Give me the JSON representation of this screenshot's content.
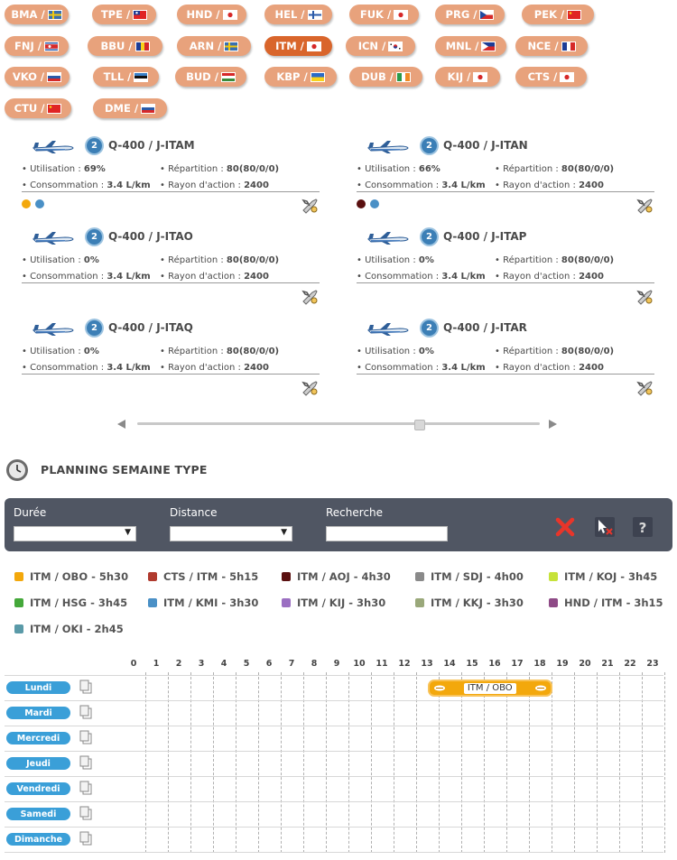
{
  "airports": [
    {
      "code": "BMA / ",
      "flag": "se"
    },
    {
      "code": "TPE / ",
      "flag": "tw"
    },
    {
      "code": "HND / ",
      "flag": "jp"
    },
    {
      "code": "HEL / ",
      "flag": "fi"
    },
    {
      "code": "FUK / ",
      "flag": "jp"
    },
    {
      "code": "PRG / ",
      "flag": "cz"
    },
    {
      "code": "PEK / ",
      "flag": "cn"
    },
    {
      "code": "FNJ / ",
      "flag": "kp"
    },
    {
      "code": "BBU / ",
      "flag": "ro"
    },
    {
      "code": "ARN / ",
      "flag": "se"
    },
    {
      "code": "ITM / ",
      "flag": "jp",
      "active": true
    },
    {
      "code": "ICN / ",
      "flag": "kr"
    },
    {
      "code": "MNL / ",
      "flag": "ph"
    },
    {
      "code": "NCE / ",
      "flag": "fr"
    },
    {
      "code": "VKO / ",
      "flag": "ru"
    },
    {
      "code": "TLL / ",
      "flag": "ee"
    },
    {
      "code": "BUD / ",
      "flag": "hu"
    },
    {
      "code": "KBP / ",
      "flag": "ua"
    },
    {
      "code": "DUB / ",
      "flag": "ie"
    },
    {
      "code": "KIJ / ",
      "flag": "jp"
    },
    {
      "code": "CTS / ",
      "flag": "jp"
    },
    {
      "code": "CTU / ",
      "flag": "cn"
    },
    {
      "code": "DME / ",
      "flag": "ru"
    }
  ],
  "aircraft": [
    {
      "level": "2",
      "title": "Q-400 / J-ITAM",
      "util_label": "Utilisation : ",
      "util": "69%",
      "rep_label": "Répartition : ",
      "rep": "80(80/0/0)",
      "conso_label": "Consommation : ",
      "conso": "3.4 L/km",
      "range_label": "Rayon d'action : ",
      "range": "2400",
      "routes": [
        "#f3a80c",
        "#4a90c6"
      ]
    },
    {
      "level": "2",
      "title": "Q-400 / J-ITAN",
      "util_label": "Utilisation : ",
      "util": "66%",
      "rep_label": "Répartition : ",
      "rep": "80(80/0/0)",
      "conso_label": "Consommation : ",
      "conso": "3.4 L/km",
      "range_label": "Rayon d'action : ",
      "range": "2400",
      "routes": [
        "#5a1010",
        "#4a90c6"
      ]
    },
    {
      "level": "2",
      "title": "Q-400 / J-ITAO",
      "util_label": "Utilisation : ",
      "util": "0%",
      "rep_label": "Répartition : ",
      "rep": "80(80/0/0)",
      "conso_label": "Consommation : ",
      "conso": "3.4 L/km",
      "range_label": "Rayon d'action : ",
      "range": "2400",
      "routes": []
    },
    {
      "level": "2",
      "title": "Q-400 / J-ITAP",
      "util_label": "Utilisation : ",
      "util": "0%",
      "rep_label": "Répartition : ",
      "rep": "80(80/0/0)",
      "conso_label": "Consommation : ",
      "conso": "3.4 L/km",
      "range_label": "Rayon d'action : ",
      "range": "2400",
      "routes": []
    },
    {
      "level": "2",
      "title": "Q-400 / J-ITAQ",
      "util_label": "Utilisation : ",
      "util": "0%",
      "rep_label": "Répartition : ",
      "rep": "80(80/0/0)",
      "conso_label": "Consommation : ",
      "conso": "3.4 L/km",
      "range_label": "Rayon d'action : ",
      "range": "2400",
      "routes": []
    },
    {
      "level": "2",
      "title": "Q-400 / J-ITAR",
      "util_label": "Utilisation : ",
      "util": "0%",
      "rep_label": "Répartition : ",
      "rep": "80(80/0/0)",
      "conso_label": "Consommation : ",
      "conso": "3.4 L/km",
      "range_label": "Rayon d'action : ",
      "range": "2400",
      "routes": []
    }
  ],
  "slider": {
    "position": 0.7
  },
  "planning": {
    "title": "PLANNING SEMAINE TYPE"
  },
  "filters": {
    "duree_label": "Durée",
    "duree_value": "",
    "distance_label": "Distance",
    "distance_value": "",
    "recherche_label": "Recherche",
    "recherche_value": ""
  },
  "legend": [
    {
      "label": "ITM / OBO - 5h30",
      "color": "#f3a80c"
    },
    {
      "label": "CTS / ITM - 5h15",
      "color": "#b03a2e"
    },
    {
      "label": "ITM / AOJ - 4h30",
      "color": "#5a1010"
    },
    {
      "label": "ITM / SDJ - 4h00",
      "color": "#8a8a8a"
    },
    {
      "label": "ITM / KOJ - 3h45",
      "color": "#c6e23a"
    },
    {
      "label": "ITM / HSG - 3h45",
      "color": "#44a83a"
    },
    {
      "label": "ITM / KMI - 3h30",
      "color": "#4a90c6"
    },
    {
      "label": "ITM / KIJ - 3h30",
      "color": "#9b6fc2"
    },
    {
      "label": "ITM / KKJ - 3h30",
      "color": "#9aa87a"
    },
    {
      "label": "HND / ITM - 3h15",
      "color": "#8e4a86"
    },
    {
      "label": "ITM / OKI - 2h45",
      "color": "#5a9aa8"
    }
  ],
  "schedule": {
    "hours": [
      "0",
      "1",
      "2",
      "3",
      "4",
      "5",
      "6",
      "7",
      "8",
      "9",
      "10",
      "11",
      "12",
      "13",
      "14",
      "15",
      "16",
      "17",
      "18",
      "19",
      "20",
      "21",
      "22",
      "23"
    ],
    "days": [
      "Lundi",
      "Mardi",
      "Mercredi",
      "Jeudi",
      "Vendredi",
      "Samedi",
      "Dimanche"
    ],
    "flights": [
      {
        "day": 0,
        "start": 13,
        "end": 18.5,
        "label": "ITM / OBO",
        "color": "#f3a80c"
      }
    ]
  }
}
